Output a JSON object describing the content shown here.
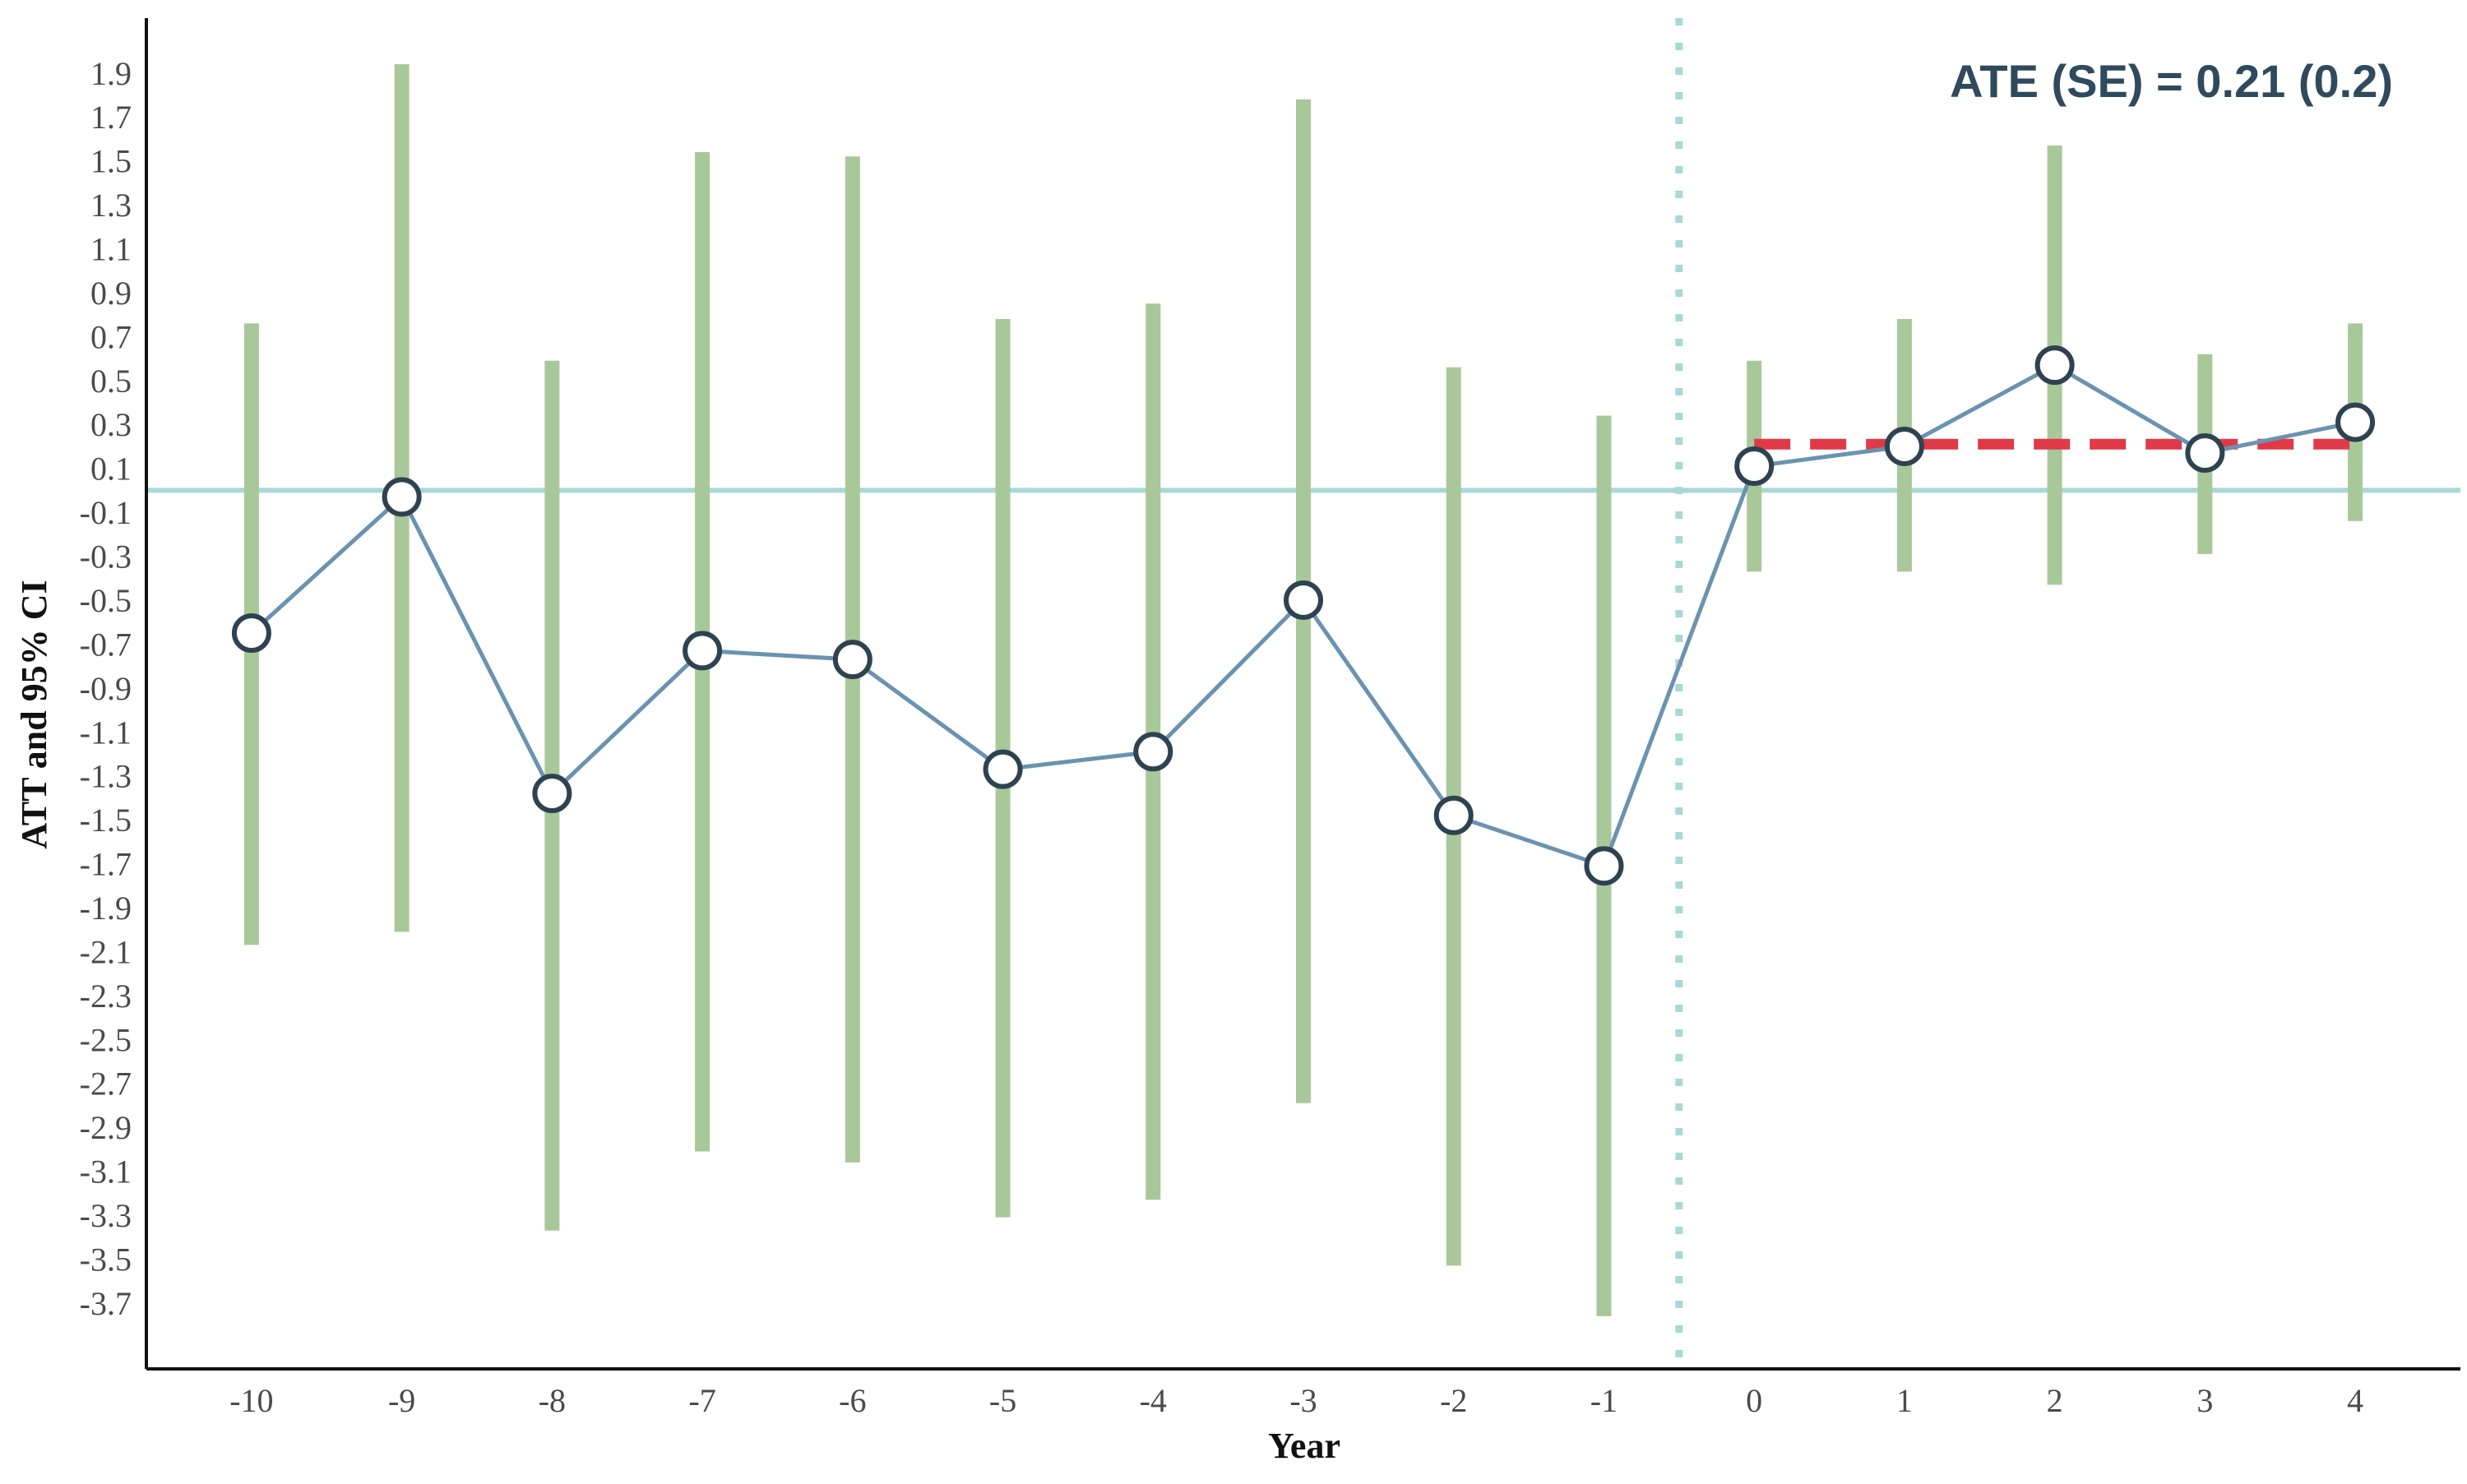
{
  "colors": {
    "ci_bar": "#a8c89a",
    "line": "#6a93b0",
    "marker_stroke": "#2e4250",
    "marker_fill": "#ffffff",
    "zero_line": "#a8d8d8",
    "event_line": "#a8d8d8",
    "ate_line": "#e03a48",
    "annotation": "#2e4a5c",
    "axis": "#111111"
  },
  "chart_data": {
    "type": "line",
    "title": "",
    "xlabel": "Year",
    "ylabel": "ATT and 95% CI",
    "annotation": "ATE (SE) = 0.21 (0.2)",
    "x": [
      -10,
      -9,
      -8,
      -7,
      -6,
      -5,
      -4,
      -3,
      -2,
      -1,
      0,
      1,
      2,
      3,
      4
    ],
    "x_tick_labels": [
      "-10",
      "-9",
      "-8",
      "-7",
      "-6",
      "-5",
      "-4",
      "-3",
      "-2",
      "-1",
      "0",
      "1",
      "2",
      "3",
      "4"
    ],
    "series": [
      {
        "values": [
          -0.65,
          -0.03,
          -1.38,
          -0.73,
          -0.77,
          -1.27,
          -1.19,
          -0.5,
          -1.48,
          -1.71,
          0.11,
          0.2,
          0.57,
          0.17,
          0.31
        ],
        "ci_lower": [
          -2.07,
          -2.01,
          -3.37,
          -3.01,
          -3.06,
          -3.31,
          -3.23,
          -2.79,
          -3.53,
          -3.76,
          -0.37,
          -0.37,
          -0.43,
          -0.29,
          -0.14
        ],
        "ci_upper": [
          0.76,
          1.94,
          0.59,
          1.54,
          1.52,
          0.78,
          0.85,
          1.78,
          0.56,
          0.34,
          0.59,
          0.78,
          1.57,
          0.62,
          0.76
        ]
      }
    ],
    "ate": {
      "value": 0.21,
      "se": 0.2,
      "x_start": 0,
      "x_end": 4
    },
    "reference_lines": {
      "horizontal_y": 0,
      "vertical_x": -0.5
    },
    "y_ticks": [
      1.9,
      1.7,
      1.5,
      1.3,
      1.1,
      0.9,
      0.7,
      0.5,
      0.3,
      0.1,
      -0.1,
      -0.3,
      -0.5,
      -0.7,
      -0.9,
      -1.1,
      -1.3,
      -1.5,
      -1.7,
      -1.9,
      -2.1,
      -2.3,
      -2.5,
      -2.7,
      -2.9,
      -3.1,
      -3.3,
      -3.5,
      -3.7
    ],
    "y_tick_labels": [
      "1.9",
      "1.7",
      "1.5",
      "1.3",
      "1.1",
      "0.9",
      "0.7",
      "0.5",
      "0.3",
      "0.1",
      "-0.1",
      "-0.3",
      "-0.5",
      "-0.7",
      "-0.9",
      "-1.1",
      "-1.3",
      "-1.5",
      "-1.7",
      "-1.9",
      "-2.1",
      "-2.3",
      "-2.5",
      "-2.7",
      "-2.9",
      "-3.1",
      "-3.3",
      "-3.5",
      "-3.7"
    ],
    "xlim": [
      -10.7,
      4.7
    ],
    "ylim": [
      -4.0,
      2.15
    ],
    "grid": false,
    "legend": "none"
  }
}
